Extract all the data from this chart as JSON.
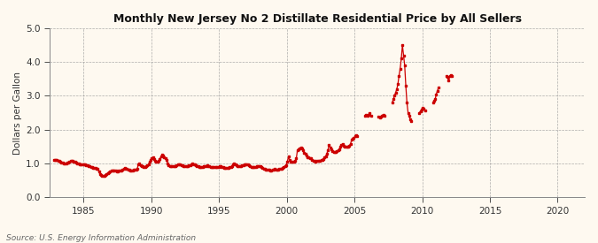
{
  "title": "Monthly New Jersey No 2 Distillate Residential Price by All Sellers",
  "ylabel": "Dollars per Gallon",
  "source": "Source: U.S. Energy Information Administration",
  "background_color": "#fef9f0",
  "line_color": "#cc0000",
  "xlim": [
    1982.5,
    2022
  ],
  "ylim": [
    0.0,
    5.0
  ],
  "xticks": [
    1985,
    1990,
    1995,
    2000,
    2005,
    2010,
    2015,
    2020
  ],
  "yticks": [
    0.0,
    1.0,
    2.0,
    3.0,
    4.0,
    5.0
  ],
  "monthly_data": [
    [
      1982,
      10,
      1.099
    ],
    [
      1982,
      11,
      1.11
    ],
    [
      1982,
      12,
      1.098
    ],
    [
      1983,
      1,
      1.09
    ],
    [
      1983,
      2,
      1.08
    ],
    [
      1983,
      3,
      1.065
    ],
    [
      1983,
      4,
      1.05
    ],
    [
      1983,
      5,
      1.03
    ],
    [
      1983,
      6,
      1.015
    ],
    [
      1983,
      7,
      1.005
    ],
    [
      1983,
      8,
      1.0
    ],
    [
      1983,
      9,
      1.0
    ],
    [
      1983,
      10,
      1.01
    ],
    [
      1983,
      11,
      1.025
    ],
    [
      1983,
      12,
      1.045
    ],
    [
      1984,
      1,
      1.065
    ],
    [
      1984,
      2,
      1.075
    ],
    [
      1984,
      3,
      1.07
    ],
    [
      1984,
      4,
      1.055
    ],
    [
      1984,
      5,
      1.04
    ],
    [
      1984,
      6,
      1.02
    ],
    [
      1984,
      7,
      1.005
    ],
    [
      1984,
      8,
      0.99
    ],
    [
      1984,
      9,
      0.98
    ],
    [
      1984,
      10,
      0.975
    ],
    [
      1984,
      11,
      0.975
    ],
    [
      1984,
      12,
      0.975
    ],
    [
      1985,
      1,
      0.97
    ],
    [
      1985,
      2,
      0.965
    ],
    [
      1985,
      3,
      0.955
    ],
    [
      1985,
      4,
      0.94
    ],
    [
      1985,
      5,
      0.925
    ],
    [
      1985,
      6,
      0.91
    ],
    [
      1985,
      7,
      0.895
    ],
    [
      1985,
      8,
      0.885
    ],
    [
      1985,
      9,
      0.875
    ],
    [
      1985,
      10,
      0.87
    ],
    [
      1985,
      11,
      0.86
    ],
    [
      1985,
      12,
      0.85
    ],
    [
      1986,
      1,
      0.835
    ],
    [
      1986,
      2,
      0.76
    ],
    [
      1986,
      3,
      0.685
    ],
    [
      1986,
      4,
      0.645
    ],
    [
      1986,
      5,
      0.63
    ],
    [
      1986,
      6,
      0.625
    ],
    [
      1986,
      7,
      0.64
    ],
    [
      1986,
      8,
      0.655
    ],
    [
      1986,
      9,
      0.68
    ],
    [
      1986,
      10,
      0.72
    ],
    [
      1986,
      11,
      0.745
    ],
    [
      1986,
      12,
      0.765
    ],
    [
      1987,
      1,
      0.78
    ],
    [
      1987,
      2,
      0.795
    ],
    [
      1987,
      3,
      0.79
    ],
    [
      1987,
      4,
      0.78
    ],
    [
      1987,
      5,
      0.775
    ],
    [
      1987,
      6,
      0.772
    ],
    [
      1987,
      7,
      0.77
    ],
    [
      1987,
      8,
      0.775
    ],
    [
      1987,
      9,
      0.78
    ],
    [
      1987,
      10,
      0.8
    ],
    [
      1987,
      11,
      0.82
    ],
    [
      1987,
      12,
      0.84
    ],
    [
      1988,
      1,
      0.858
    ],
    [
      1988,
      2,
      0.852
    ],
    [
      1988,
      3,
      0.838
    ],
    [
      1988,
      4,
      0.82
    ],
    [
      1988,
      5,
      0.808
    ],
    [
      1988,
      6,
      0.8
    ],
    [
      1988,
      7,
      0.798
    ],
    [
      1988,
      8,
      0.8
    ],
    [
      1988,
      9,
      0.808
    ],
    [
      1988,
      10,
      0.818
    ],
    [
      1988,
      11,
      0.825
    ],
    [
      1988,
      12,
      0.835
    ],
    [
      1989,
      1,
      0.965
    ],
    [
      1989,
      2,
      0.99
    ],
    [
      1989,
      3,
      0.955
    ],
    [
      1989,
      4,
      0.93
    ],
    [
      1989,
      5,
      0.912
    ],
    [
      1989,
      6,
      0.9
    ],
    [
      1989,
      7,
      0.9
    ],
    [
      1989,
      8,
      0.91
    ],
    [
      1989,
      9,
      0.94
    ],
    [
      1989,
      10,
      0.975
    ],
    [
      1989,
      11,
      1.045
    ],
    [
      1989,
      12,
      1.095
    ],
    [
      1990,
      1,
      1.15
    ],
    [
      1990,
      2,
      1.178
    ],
    [
      1990,
      3,
      1.12
    ],
    [
      1990,
      4,
      1.082
    ],
    [
      1990,
      5,
      1.06
    ],
    [
      1990,
      6,
      1.058
    ],
    [
      1990,
      7,
      1.065
    ],
    [
      1990,
      8,
      1.12
    ],
    [
      1990,
      9,
      1.195
    ],
    [
      1990,
      10,
      1.248
    ],
    [
      1990,
      11,
      1.22
    ],
    [
      1990,
      12,
      1.175
    ],
    [
      1991,
      1,
      1.148
    ],
    [
      1991,
      2,
      1.095
    ],
    [
      1991,
      3,
      0.998
    ],
    [
      1991,
      4,
      0.95
    ],
    [
      1991,
      5,
      0.928
    ],
    [
      1991,
      6,
      0.915
    ],
    [
      1991,
      7,
      0.912
    ],
    [
      1991,
      8,
      0.915
    ],
    [
      1991,
      9,
      0.92
    ],
    [
      1991,
      10,
      0.925
    ],
    [
      1991,
      11,
      0.94
    ],
    [
      1991,
      12,
      0.96
    ],
    [
      1992,
      1,
      0.978
    ],
    [
      1992,
      2,
      0.972
    ],
    [
      1992,
      3,
      0.952
    ],
    [
      1992,
      4,
      0.935
    ],
    [
      1992,
      5,
      0.92
    ],
    [
      1992,
      6,
      0.91
    ],
    [
      1992,
      7,
      0.908
    ],
    [
      1992,
      8,
      0.912
    ],
    [
      1992,
      9,
      0.92
    ],
    [
      1992,
      10,
      0.932
    ],
    [
      1992,
      11,
      0.948
    ],
    [
      1992,
      12,
      0.965
    ],
    [
      1993,
      1,
      0.985
    ],
    [
      1993,
      2,
      0.978
    ],
    [
      1993,
      3,
      0.958
    ],
    [
      1993,
      4,
      0.938
    ],
    [
      1993,
      5,
      0.92
    ],
    [
      1993,
      6,
      0.905
    ],
    [
      1993,
      7,
      0.9
    ],
    [
      1993,
      8,
      0.9
    ],
    [
      1993,
      9,
      0.9
    ],
    [
      1993,
      10,
      0.902
    ],
    [
      1993,
      11,
      0.912
    ],
    [
      1993,
      12,
      0.92
    ],
    [
      1994,
      1,
      0.93
    ],
    [
      1994,
      2,
      0.938
    ],
    [
      1994,
      3,
      0.922
    ],
    [
      1994,
      4,
      0.905
    ],
    [
      1994,
      5,
      0.892
    ],
    [
      1994,
      6,
      0.882
    ],
    [
      1994,
      7,
      0.88
    ],
    [
      1994,
      8,
      0.882
    ],
    [
      1994,
      9,
      0.885
    ],
    [
      1994,
      10,
      0.882
    ],
    [
      1994,
      11,
      0.888
    ],
    [
      1994,
      12,
      0.898
    ],
    [
      1995,
      1,
      0.908
    ],
    [
      1995,
      2,
      0.918
    ],
    [
      1995,
      3,
      0.902
    ],
    [
      1995,
      4,
      0.888
    ],
    [
      1995,
      5,
      0.878
    ],
    [
      1995,
      6,
      0.87
    ],
    [
      1995,
      7,
      0.868
    ],
    [
      1995,
      8,
      0.872
    ],
    [
      1995,
      9,
      0.878
    ],
    [
      1995,
      10,
      0.888
    ],
    [
      1995,
      11,
      0.9
    ],
    [
      1995,
      12,
      0.918
    ],
    [
      1996,
      1,
      0.98
    ],
    [
      1996,
      2,
      0.998
    ],
    [
      1996,
      3,
      0.968
    ],
    [
      1996,
      4,
      0.94
    ],
    [
      1996,
      5,
      0.92
    ],
    [
      1996,
      6,
      0.908
    ],
    [
      1996,
      7,
      0.908
    ],
    [
      1996,
      8,
      0.918
    ],
    [
      1996,
      9,
      0.935
    ],
    [
      1996,
      10,
      0.948
    ],
    [
      1996,
      11,
      0.958
    ],
    [
      1996,
      12,
      0.968
    ],
    [
      1997,
      1,
      0.978
    ],
    [
      1997,
      2,
      0.968
    ],
    [
      1997,
      3,
      0.942
    ],
    [
      1997,
      4,
      0.918
    ],
    [
      1997,
      5,
      0.902
    ],
    [
      1997,
      6,
      0.892
    ],
    [
      1997,
      7,
      0.888
    ],
    [
      1997,
      8,
      0.892
    ],
    [
      1997,
      9,
      0.9
    ],
    [
      1997,
      10,
      0.908
    ],
    [
      1997,
      11,
      0.918
    ],
    [
      1997,
      12,
      0.928
    ],
    [
      1998,
      1,
      0.918
    ],
    [
      1998,
      2,
      0.898
    ],
    [
      1998,
      3,
      0.868
    ],
    [
      1998,
      4,
      0.845
    ],
    [
      1998,
      5,
      0.828
    ],
    [
      1998,
      6,
      0.818
    ],
    [
      1998,
      7,
      0.808
    ],
    [
      1998,
      8,
      0.805
    ],
    [
      1998,
      9,
      0.802
    ],
    [
      1998,
      10,
      0.8
    ],
    [
      1998,
      11,
      0.8
    ],
    [
      1998,
      12,
      0.808
    ],
    [
      1999,
      1,
      0.818
    ],
    [
      1999,
      2,
      0.828
    ],
    [
      1999,
      3,
      0.82
    ],
    [
      1999,
      4,
      0.815
    ],
    [
      1999,
      5,
      0.818
    ],
    [
      1999,
      6,
      0.828
    ],
    [
      1999,
      7,
      0.84
    ],
    [
      1999,
      8,
      0.852
    ],
    [
      1999,
      9,
      0.868
    ],
    [
      1999,
      10,
      0.885
    ],
    [
      1999,
      11,
      0.905
    ],
    [
      1999,
      12,
      0.945
    ],
    [
      2000,
      1,
      1.048
    ],
    [
      2000,
      2,
      1.195
    ],
    [
      2000,
      3,
      1.095
    ],
    [
      2000,
      4,
      1.048
    ],
    [
      2000,
      5,
      1.038
    ],
    [
      2000,
      6,
      1.048
    ],
    [
      2000,
      7,
      1.058
    ],
    [
      2000,
      8,
      1.08
    ],
    [
      2000,
      9,
      1.15
    ],
    [
      2000,
      10,
      1.395
    ],
    [
      2000,
      11,
      1.418
    ],
    [
      2000,
      12,
      1.445
    ],
    [
      2001,
      1,
      1.478
    ],
    [
      2001,
      2,
      1.445
    ],
    [
      2001,
      3,
      1.378
    ],
    [
      2001,
      4,
      1.318
    ],
    [
      2001,
      5,
      1.275
    ],
    [
      2001,
      6,
      1.232
    ],
    [
      2001,
      7,
      1.192
    ],
    [
      2001,
      8,
      1.172
    ],
    [
      2001,
      9,
      1.155
    ],
    [
      2001,
      10,
      1.148
    ],
    [
      2001,
      11,
      1.098
    ],
    [
      2001,
      12,
      1.082
    ],
    [
      2002,
      1,
      1.062
    ],
    [
      2002,
      2,
      1.052
    ],
    [
      2002,
      3,
      1.078
    ],
    [
      2002,
      4,
      1.082
    ],
    [
      2002,
      5,
      1.082
    ],
    [
      2002,
      6,
      1.082
    ],
    [
      2002,
      7,
      1.092
    ],
    [
      2002,
      8,
      1.108
    ],
    [
      2002,
      9,
      1.125
    ],
    [
      2002,
      10,
      1.182
    ],
    [
      2002,
      11,
      1.218
    ],
    [
      2002,
      12,
      1.278
    ],
    [
      2003,
      1,
      1.395
    ],
    [
      2003,
      2,
      1.545
    ],
    [
      2003,
      3,
      1.478
    ],
    [
      2003,
      4,
      1.408
    ],
    [
      2003,
      5,
      1.368
    ],
    [
      2003,
      6,
      1.338
    ],
    [
      2003,
      7,
      1.332
    ],
    [
      2003,
      8,
      1.348
    ],
    [
      2003,
      9,
      1.368
    ],
    [
      2003,
      10,
      1.378
    ],
    [
      2003,
      11,
      1.418
    ],
    [
      2003,
      12,
      1.495
    ],
    [
      2004,
      1,
      1.548
    ],
    [
      2004,
      2,
      1.578
    ],
    [
      2004,
      3,
      1.518
    ],
    [
      2004,
      4,
      1.488
    ],
    [
      2004,
      5,
      1.488
    ],
    [
      2004,
      6,
      1.488
    ],
    [
      2004,
      7,
      1.498
    ],
    [
      2004,
      8,
      1.528
    ],
    [
      2004,
      9,
      1.578
    ],
    [
      2004,
      10,
      1.695
    ],
    [
      2004,
      11,
      1.718
    ],
    [
      2004,
      12,
      1.748
    ],
    [
      2005,
      1,
      1.795
    ],
    [
      2005,
      2,
      1.845
    ],
    [
      2005,
      3,
      1.818
    ],
    [
      2005,
      10,
      2.398
    ],
    [
      2005,
      11,
      2.448
    ],
    [
      2005,
      12,
      2.418
    ],
    [
      2006,
      1,
      2.448
    ],
    [
      2006,
      2,
      2.478
    ],
    [
      2006,
      3,
      2.418
    ],
    [
      2006,
      10,
      2.378
    ],
    [
      2006,
      11,
      2.348
    ],
    [
      2006,
      12,
      2.378
    ],
    [
      2007,
      1,
      2.418
    ],
    [
      2007,
      2,
      2.448
    ],
    [
      2007,
      3,
      2.398
    ],
    [
      2007,
      10,
      2.798
    ],
    [
      2007,
      11,
      2.898
    ],
    [
      2007,
      12,
      2.998
    ],
    [
      2008,
      1,
      3.098
    ],
    [
      2008,
      2,
      3.198
    ],
    [
      2008,
      3,
      3.348
    ],
    [
      2008,
      4,
      3.598
    ],
    [
      2008,
      5,
      3.798
    ],
    [
      2008,
      6,
      4.098
    ],
    [
      2008,
      7,
      4.498
    ],
    [
      2008,
      8,
      4.198
    ],
    [
      2008,
      9,
      3.898
    ],
    [
      2008,
      10,
      3.298
    ],
    [
      2008,
      11,
      2.798
    ],
    [
      2008,
      12,
      2.498
    ],
    [
      2009,
      1,
      2.398
    ],
    [
      2009,
      2,
      2.298
    ],
    [
      2009,
      3,
      2.248
    ],
    [
      2009,
      10,
      2.498
    ],
    [
      2009,
      11,
      2.548
    ],
    [
      2009,
      12,
      2.598
    ],
    [
      2010,
      1,
      2.648
    ],
    [
      2010,
      2,
      2.618
    ],
    [
      2010,
      3,
      2.578
    ],
    [
      2010,
      10,
      2.798
    ],
    [
      2010,
      11,
      2.848
    ],
    [
      2010,
      12,
      2.898
    ],
    [
      2011,
      1,
      3.048
    ],
    [
      2011,
      2,
      3.148
    ],
    [
      2011,
      3,
      3.248
    ],
    [
      2011,
      10,
      3.598
    ],
    [
      2011,
      11,
      3.548
    ],
    [
      2011,
      12,
      3.448
    ],
    [
      2012,
      1,
      3.578
    ],
    [
      2012,
      2,
      3.618
    ],
    [
      2012,
      3,
      3.598
    ]
  ]
}
